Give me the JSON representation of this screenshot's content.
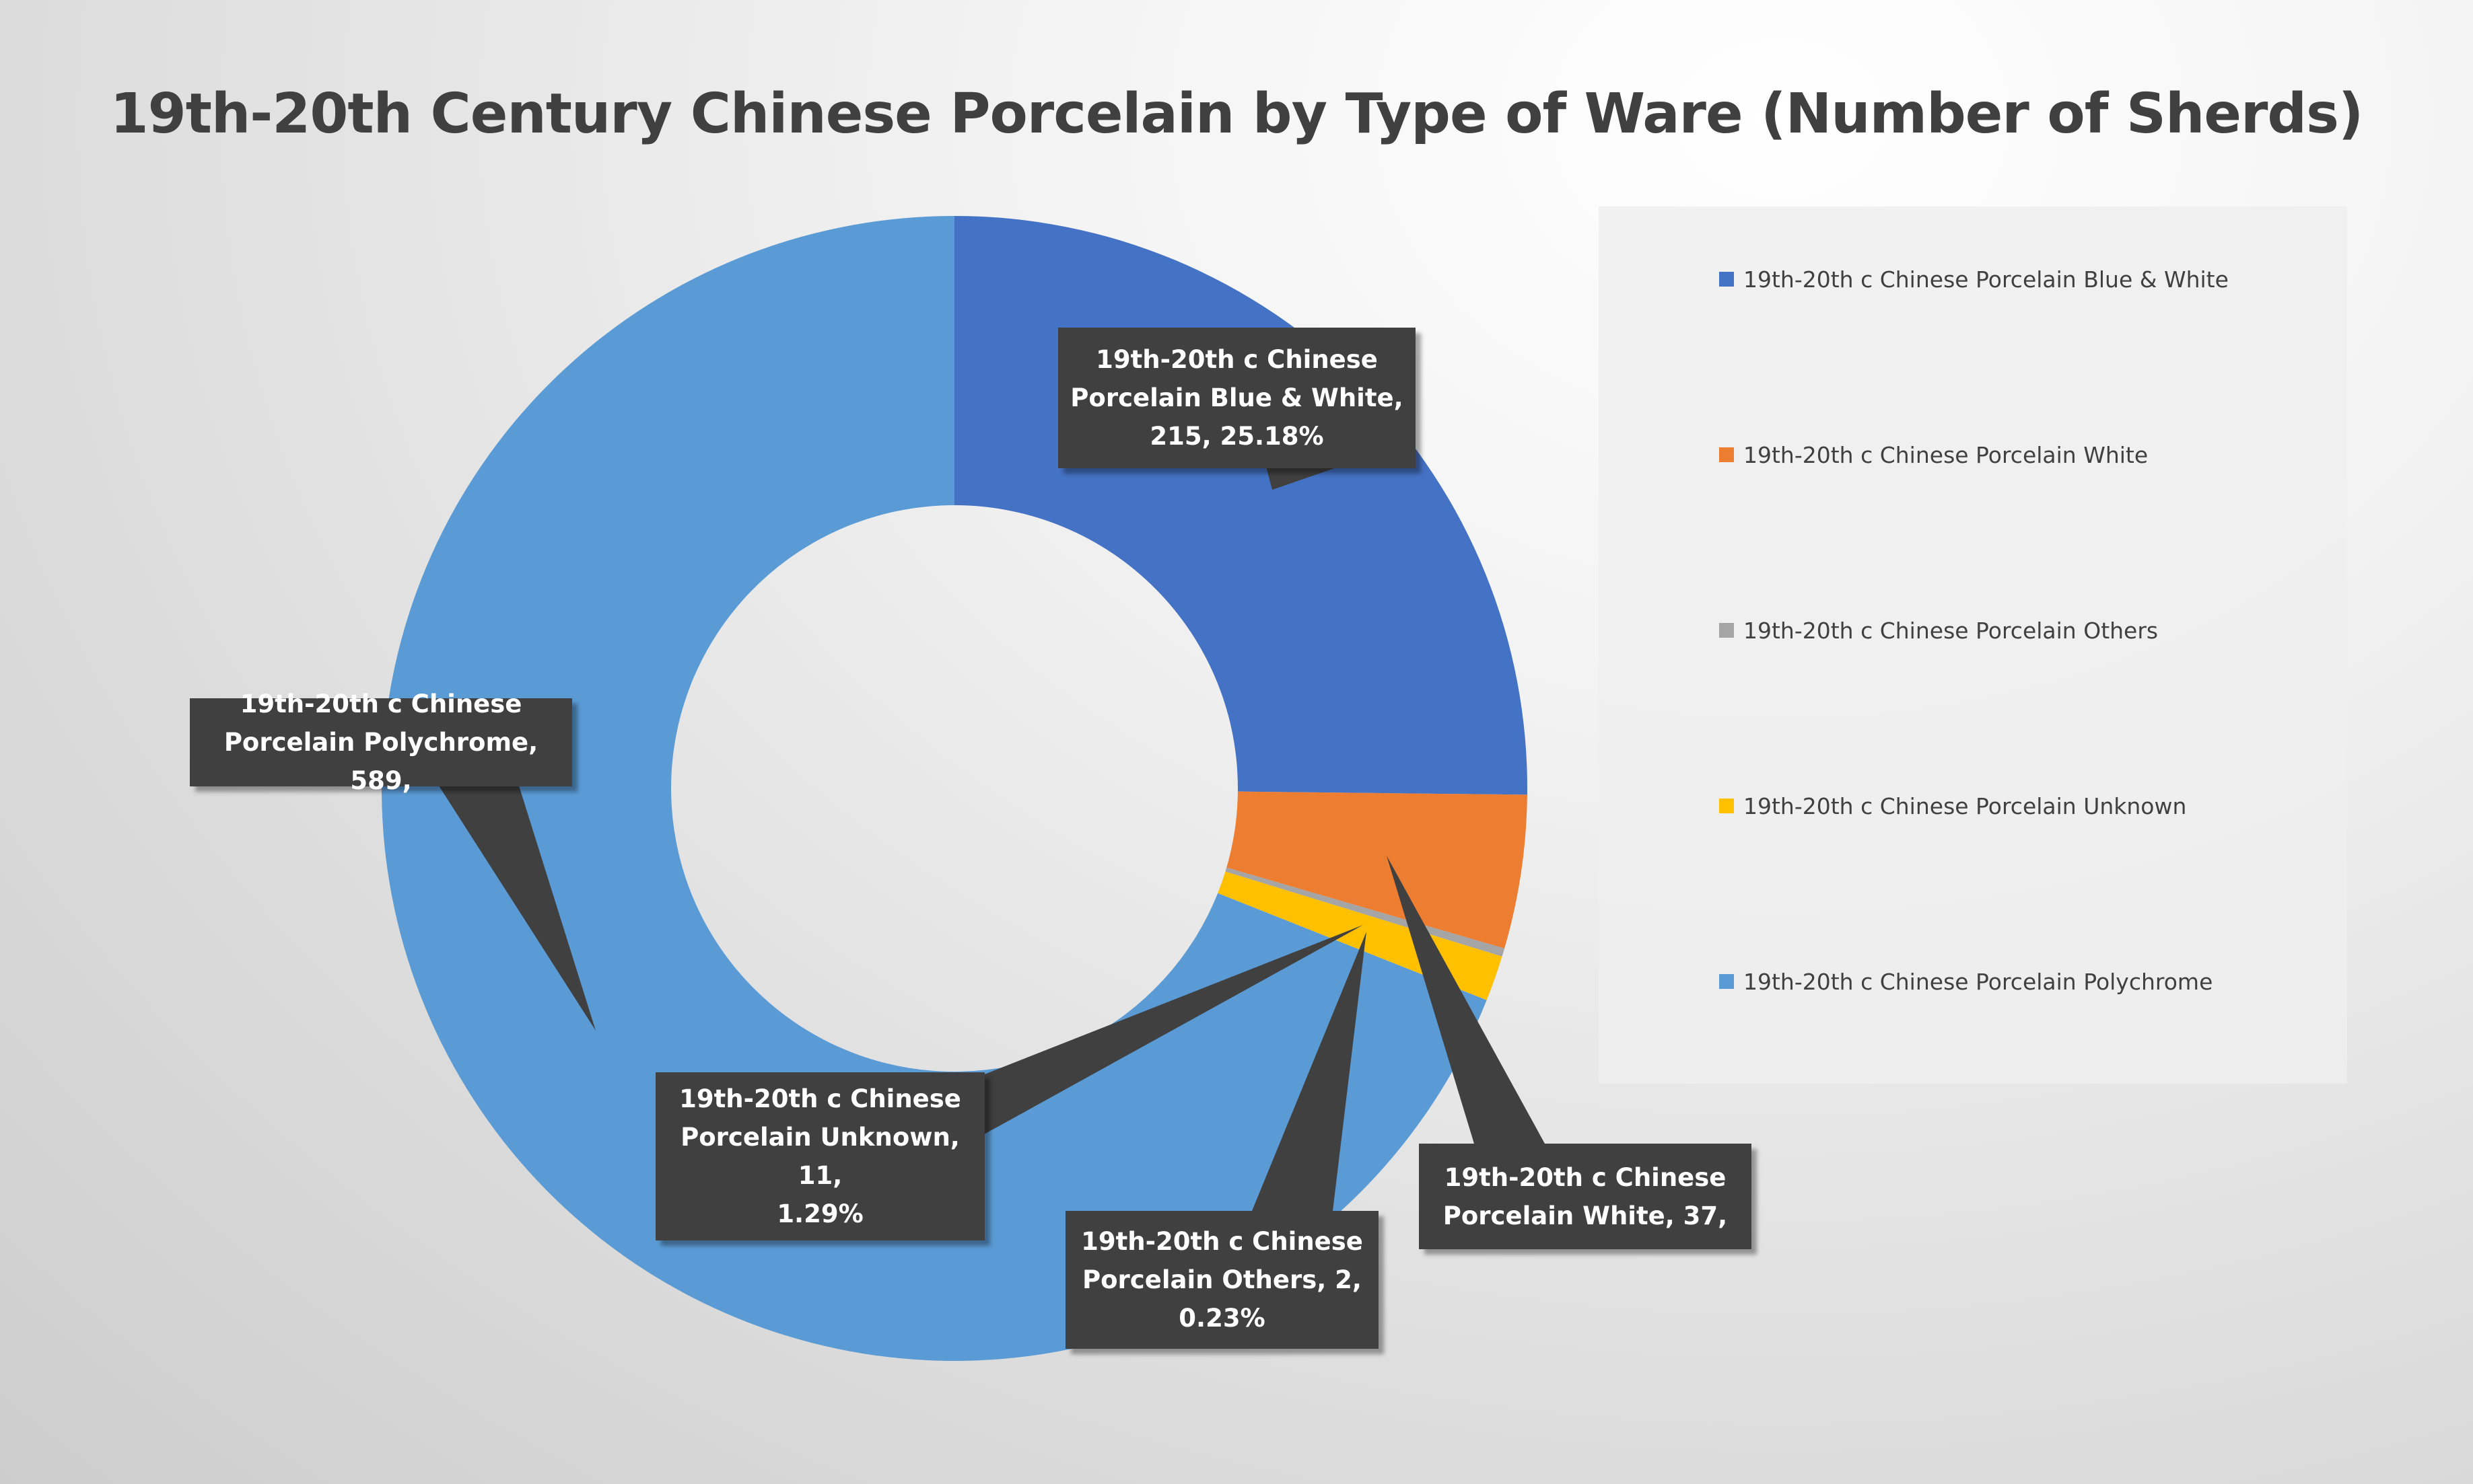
{
  "chart_data": {
    "type": "pie",
    "variant": "doughnut",
    "title": "19th-20th Century Chinese Porcelain by Type of Ware (Number of Sherds)",
    "categories": [
      "19th-20th c Chinese Porcelain Blue & White",
      "19th-20th c Chinese Porcelain White",
      "19th-20th c Chinese Porcelain Others",
      "19th-20th c Chinese Porcelain Unknown",
      "19th-20th c Chinese Porcelain Polychrome"
    ],
    "values": [
      215,
      37,
      2,
      11,
      589
    ],
    "colors": [
      "#4472C4",
      "#ED7D31",
      "#A5A5A5",
      "#FFC000",
      "#5B9BD5"
    ],
    "legend_position": "right",
    "data_labels": [
      "19th-20th c Chinese Porcelain Blue & White, 215, 25.18%",
      "19th-20th c Chinese Porcelain White, 37,",
      "19th-20th c Chinese Porcelain Others, 2, 0.23%",
      "19th-20th c Chinese Porcelain Unknown, 11, 1.29%",
      "19th-20th c Chinese Porcelain Polychrome, 589,"
    ],
    "data_label_lines": [
      [
        "19th-20th c Chinese",
        "Porcelain Blue & White,",
        "215, 25.18%"
      ],
      [
        "19th-20th c Chinese",
        "Porcelain White, 37,"
      ],
      [
        "19th-20th c Chinese",
        "Porcelain Others, 2,",
        "0.23%"
      ],
      [
        "19th-20th c Chinese",
        "Porcelain Unknown, 11,",
        "1.29%"
      ],
      [
        "19th-20th c Chinese",
        "Porcelain Polychrome, 589,"
      ]
    ]
  }
}
